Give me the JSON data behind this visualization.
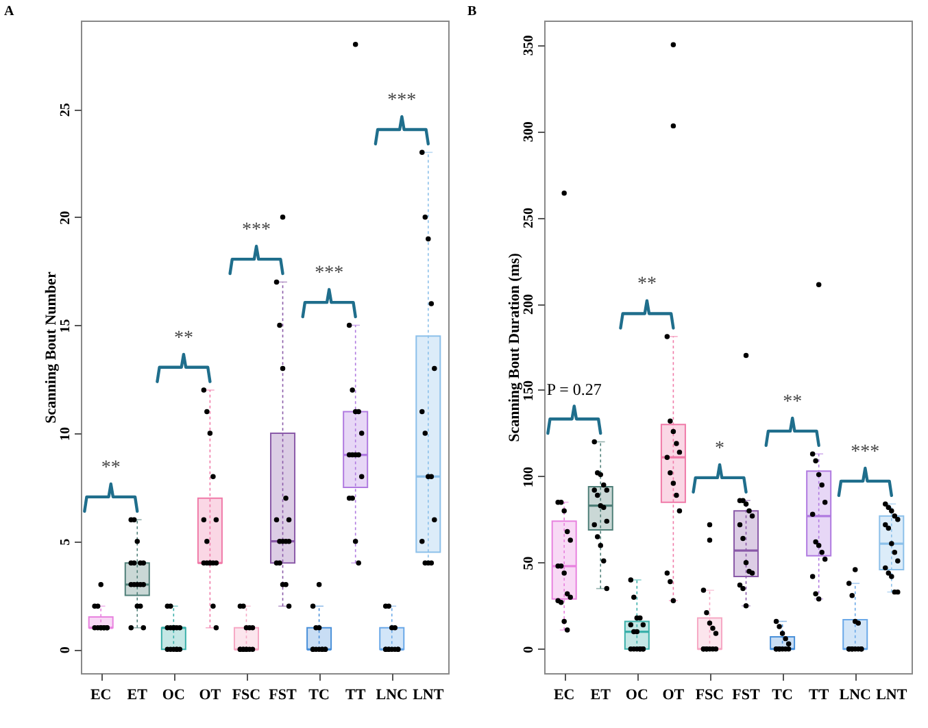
{
  "chart_data": [
    {
      "type": "box",
      "title": "A",
      "ylabel": "Scanning Bout Number",
      "categories": [
        "EC",
        "ET",
        "OC",
        "OT",
        "FSC",
        "FST",
        "TC",
        "TT",
        "LNC",
        "LNT"
      ],
      "colors": [
        "#e882df",
        "#4f7f78",
        "#3bb0aa",
        "#f07aa8",
        "#f6a8c4",
        "#8a5aa8",
        "#4a90d9",
        "#b07ae0",
        "#6aa8e8",
        "#8cc0ea"
      ],
      "boxes": [
        {
          "low": 1,
          "q1": 1,
          "median": 1,
          "q3": 1.5,
          "high": 2,
          "outliers": [
            3
          ]
        },
        {
          "low": 1,
          "q1": 2.5,
          "median": 3,
          "q3": 4,
          "high": 6
        },
        {
          "low": 0,
          "q1": 0,
          "median": 1,
          "q3": 1,
          "high": 2
        },
        {
          "low": 1,
          "q1": 4,
          "median": 4,
          "q3": 7,
          "high": 12
        },
        {
          "low": 0,
          "q1": 0,
          "median": 0,
          "q3": 1,
          "high": 2
        },
        {
          "low": 2,
          "q1": 4,
          "median": 5,
          "q3": 10,
          "high": 17,
          "outliers": [
            20
          ]
        },
        {
          "low": 0,
          "q1": 0,
          "median": 0,
          "q3": 1,
          "high": 2,
          "outliers": [
            3
          ]
        },
        {
          "low": 4,
          "q1": 7.5,
          "median": 9,
          "q3": 11,
          "high": 15,
          "outliers": [
            28
          ]
        },
        {
          "low": 0,
          "q1": 0,
          "median": 0,
          "q3": 1,
          "high": 2
        },
        {
          "low": 4,
          "q1": 4.5,
          "median": 8,
          "q3": 14.5,
          "high": 23
        }
      ],
      "series": [
        {
          "type": "scatter",
          "color": "#000000",
          "x": [
            "EC",
            "EC",
            "EC",
            "EC",
            "EC",
            "EC",
            "EC",
            "EC",
            "EC",
            "EC",
            "ET",
            "ET",
            "ET",
            "ET",
            "ET",
            "ET",
            "ET",
            "ET",
            "ET",
            "ET",
            "ET",
            "ET",
            "ET",
            "ET",
            "ET",
            "ET",
            "OC",
            "OC",
            "OC",
            "OC",
            "OC",
            "OC",
            "OC",
            "OC",
            "OC",
            "OC",
            "OC",
            "OC",
            "OC",
            "OC",
            "OT",
            "OT",
            "OT",
            "OT",
            "OT",
            "OT",
            "OT",
            "OT",
            "OT",
            "OT",
            "OT",
            "OT",
            "OT",
            "OT",
            "OT",
            "FSC",
            "FSC",
            "FSC",
            "FSC",
            "FSC",
            "FSC",
            "FSC",
            "FSC",
            "FSC",
            "FSC",
            "FSC",
            "FSC",
            "FSC",
            "FST",
            "FST",
            "FST",
            "FST",
            "FST",
            "FST",
            "FST",
            "FST",
            "FST",
            "FST",
            "FST",
            "FST",
            "FST",
            "FST",
            "FST",
            "TC",
            "TC",
            "TC",
            "TC",
            "TC",
            "TC",
            "TC",
            "TC",
            "TC",
            "TC",
            "TC",
            "TT",
            "TT",
            "TT",
            "TT",
            "TT",
            "TT",
            "TT",
            "TT",
            "TT",
            "TT",
            "TT",
            "TT",
            "TT",
            "TT",
            "LNC",
            "LNC",
            "LNC",
            "LNC",
            "LNC",
            "LNC",
            "LNC",
            "LNC",
            "LNC",
            "LNC",
            "LNC",
            "LNC",
            "LNT",
            "LNT",
            "LNT",
            "LNT",
            "LNT",
            "LNT",
            "LNT",
            "LNT",
            "LNT",
            "LNT",
            "LNT",
            "LNT",
            "LNT",
            "LNT"
          ],
          "values": [
            2,
            2,
            1,
            1,
            1,
            1,
            1,
            1,
            1,
            1,
            6,
            6,
            5,
            4,
            4,
            4,
            4,
            3,
            3,
            3,
            3,
            3,
            2,
            2,
            1,
            1,
            2,
            2,
            1,
            1,
            1,
            1,
            1,
            1,
            0,
            0,
            0,
            0,
            0,
            0,
            12,
            11,
            10,
            8,
            6,
            6,
            5,
            4,
            4,
            4,
            4,
            4,
            4,
            2,
            1,
            2,
            2,
            1,
            1,
            1,
            0,
            0,
            0,
            0,
            0,
            0,
            0,
            0,
            17,
            15,
            13,
            7,
            6,
            6,
            5,
            5,
            5,
            5,
            4,
            4,
            3,
            3,
            2,
            2,
            1,
            1,
            0,
            0,
            0,
            0,
            0,
            0,
            0,
            0,
            15,
            12,
            11,
            11,
            10,
            9,
            9,
            9,
            9,
            8,
            7,
            7,
            5,
            4,
            2,
            2,
            1,
            1,
            0,
            0,
            0,
            0,
            0,
            0,
            0,
            0,
            23,
            20,
            19,
            16,
            13,
            11,
            10,
            8,
            8,
            6,
            5,
            4,
            4,
            4
          ]
        }
      ],
      "annotations": [
        "**",
        "**",
        "***",
        "***",
        "***"
      ],
      "ylim": [
        -1.1,
        29.1
      ],
      "yticks": [
        0,
        5,
        10,
        15,
        20,
        25
      ]
    },
    {
      "type": "box",
      "title": "B",
      "ylabel": "Scanning Bout Duration (ms)",
      "categories": [
        "EC",
        "ET",
        "OC",
        "OT",
        "FSC",
        "FST",
        "TC",
        "TT",
        "LNC",
        "LNT"
      ],
      "colors": [
        "#e882df",
        "#4f7f78",
        "#3bb0aa",
        "#f07aa8",
        "#f6a8c4",
        "#8a5aa8",
        "#4a90d9",
        "#b07ae0",
        "#6aa8e8",
        "#8cc0ea"
      ],
      "boxes": [
        {
          "low": 11,
          "q1": 29,
          "median": 48,
          "q3": 74,
          "high": 85,
          "outliers": [
            264
          ]
        },
        {
          "low": 35,
          "q1": 69,
          "median": 83,
          "q3": 94,
          "high": 120
        },
        {
          "low": 0,
          "q1": 0,
          "median": 10,
          "q3": 16,
          "high": 40
        },
        {
          "low": 28,
          "q1": 85,
          "median": 111,
          "q3": 130,
          "high": 181,
          "outliers": [
            303,
            350
          ]
        },
        {
          "low": 0,
          "q1": 0,
          "median": 0,
          "q3": 18,
          "high": 34,
          "outliers": [
            63,
            72
          ]
        },
        {
          "low": 25,
          "q1": 42,
          "median": 57,
          "q3": 80,
          "high": 86,
          "outliers": [
            170
          ]
        },
        {
          "low": 0,
          "q1": 0,
          "median": 0,
          "q3": 7,
          "high": 16
        },
        {
          "low": 29,
          "q1": 54,
          "median": 77,
          "q3": 103,
          "high": 113,
          "outliers": [
            211
          ]
        },
        {
          "low": 0,
          "q1": 0,
          "median": 0,
          "q3": 17,
          "high": 38,
          "outliers": [
            46
          ]
        },
        {
          "low": 33,
          "q1": 46,
          "median": 61,
          "q3": 77,
          "high": 84
        }
      ],
      "series": [
        {
          "type": "scatter",
          "color": "#000000",
          "x": [
            "EC",
            "EC",
            "EC",
            "EC",
            "EC",
            "EC",
            "EC",
            "EC",
            "EC",
            "EC",
            "EC",
            "EC",
            "EC",
            "EC",
            "ET",
            "ET",
            "ET",
            "ET",
            "ET",
            "ET",
            "ET",
            "ET",
            "ET",
            "ET",
            "ET",
            "ET",
            "ET",
            "ET",
            "ET",
            "OC",
            "OC",
            "OC",
            "OC",
            "OC",
            "OC",
            "OC",
            "OC",
            "OC",
            "OC",
            "OC",
            "OC",
            "OC",
            "OC",
            "OC",
            "OT",
            "OT",
            "OT",
            "OT",
            "OT",
            "OT",
            "OT",
            "OT",
            "OT",
            "OT",
            "OT",
            "OT",
            "OT",
            "FSC",
            "FSC",
            "FSC",
            "FSC",
            "FSC",
            "FSC",
            "FSC",
            "FSC",
            "FSC",
            "FSC",
            "FSC",
            "FSC",
            "FST",
            "FST",
            "FST",
            "FST",
            "FST",
            "FST",
            "FST",
            "FST",
            "FST",
            "FST",
            "FST",
            "FST",
            "FST",
            "TC",
            "TC",
            "TC",
            "TC",
            "TC",
            "TC",
            "TC",
            "TC",
            "TC",
            "TC",
            "TC",
            "TC",
            "TT",
            "TT",
            "TT",
            "TT",
            "TT",
            "TT",
            "TT",
            "TT",
            "TT",
            "TT",
            "TT",
            "TT",
            "TT",
            "LNC",
            "LNC",
            "LNC",
            "LNC",
            "LNC",
            "LNC",
            "LNC",
            "LNC",
            "LNC",
            "LNC",
            "LNC",
            "LNC",
            "LNT",
            "LNT",
            "LNT",
            "LNT",
            "LNT",
            "LNT",
            "LNT",
            "LNT",
            "LNT",
            "LNT",
            "LNT",
            "LNT",
            "LNT",
            "LNT",
            "LNT"
          ],
          "values": [
            85,
            85,
            80,
            68,
            63,
            48,
            48,
            44,
            32,
            30,
            28,
            27,
            16,
            11,
            120,
            102,
            101,
            95,
            92,
            92,
            89,
            83,
            82,
            74,
            72,
            65,
            60,
            51,
            35,
            40,
            30,
            18,
            18,
            14,
            14,
            10,
            10,
            0,
            0,
            0,
            0,
            0,
            0,
            0,
            181,
            132,
            126,
            119,
            114,
            111,
            102,
            96,
            89,
            80,
            44,
            39,
            28,
            34,
            21,
            15,
            12,
            9,
            0,
            0,
            0,
            0,
            0,
            0,
            0,
            86,
            86,
            84,
            80,
            77,
            72,
            64,
            50,
            45,
            44,
            37,
            35,
            25,
            16,
            13,
            9,
            6,
            3,
            0,
            0,
            0,
            0,
            0,
            0,
            0,
            113,
            109,
            101,
            95,
            85,
            78,
            62,
            60,
            56,
            52,
            42,
            32,
            29,
            38,
            31,
            16,
            15,
            0,
            0,
            0,
            0,
            0,
            0,
            0,
            0,
            84,
            82,
            80,
            77,
            75,
            72,
            70,
            61,
            56,
            51,
            47,
            44,
            42,
            33,
            33
          ]
        }
      ],
      "annotations": [
        "P = 0.27",
        "**",
        "*",
        "**",
        "***"
      ],
      "ylim": [
        -14,
        364
      ],
      "yticks": [
        0,
        50,
        100,
        150,
        200,
        250,
        300,
        350
      ]
    }
  ]
}
